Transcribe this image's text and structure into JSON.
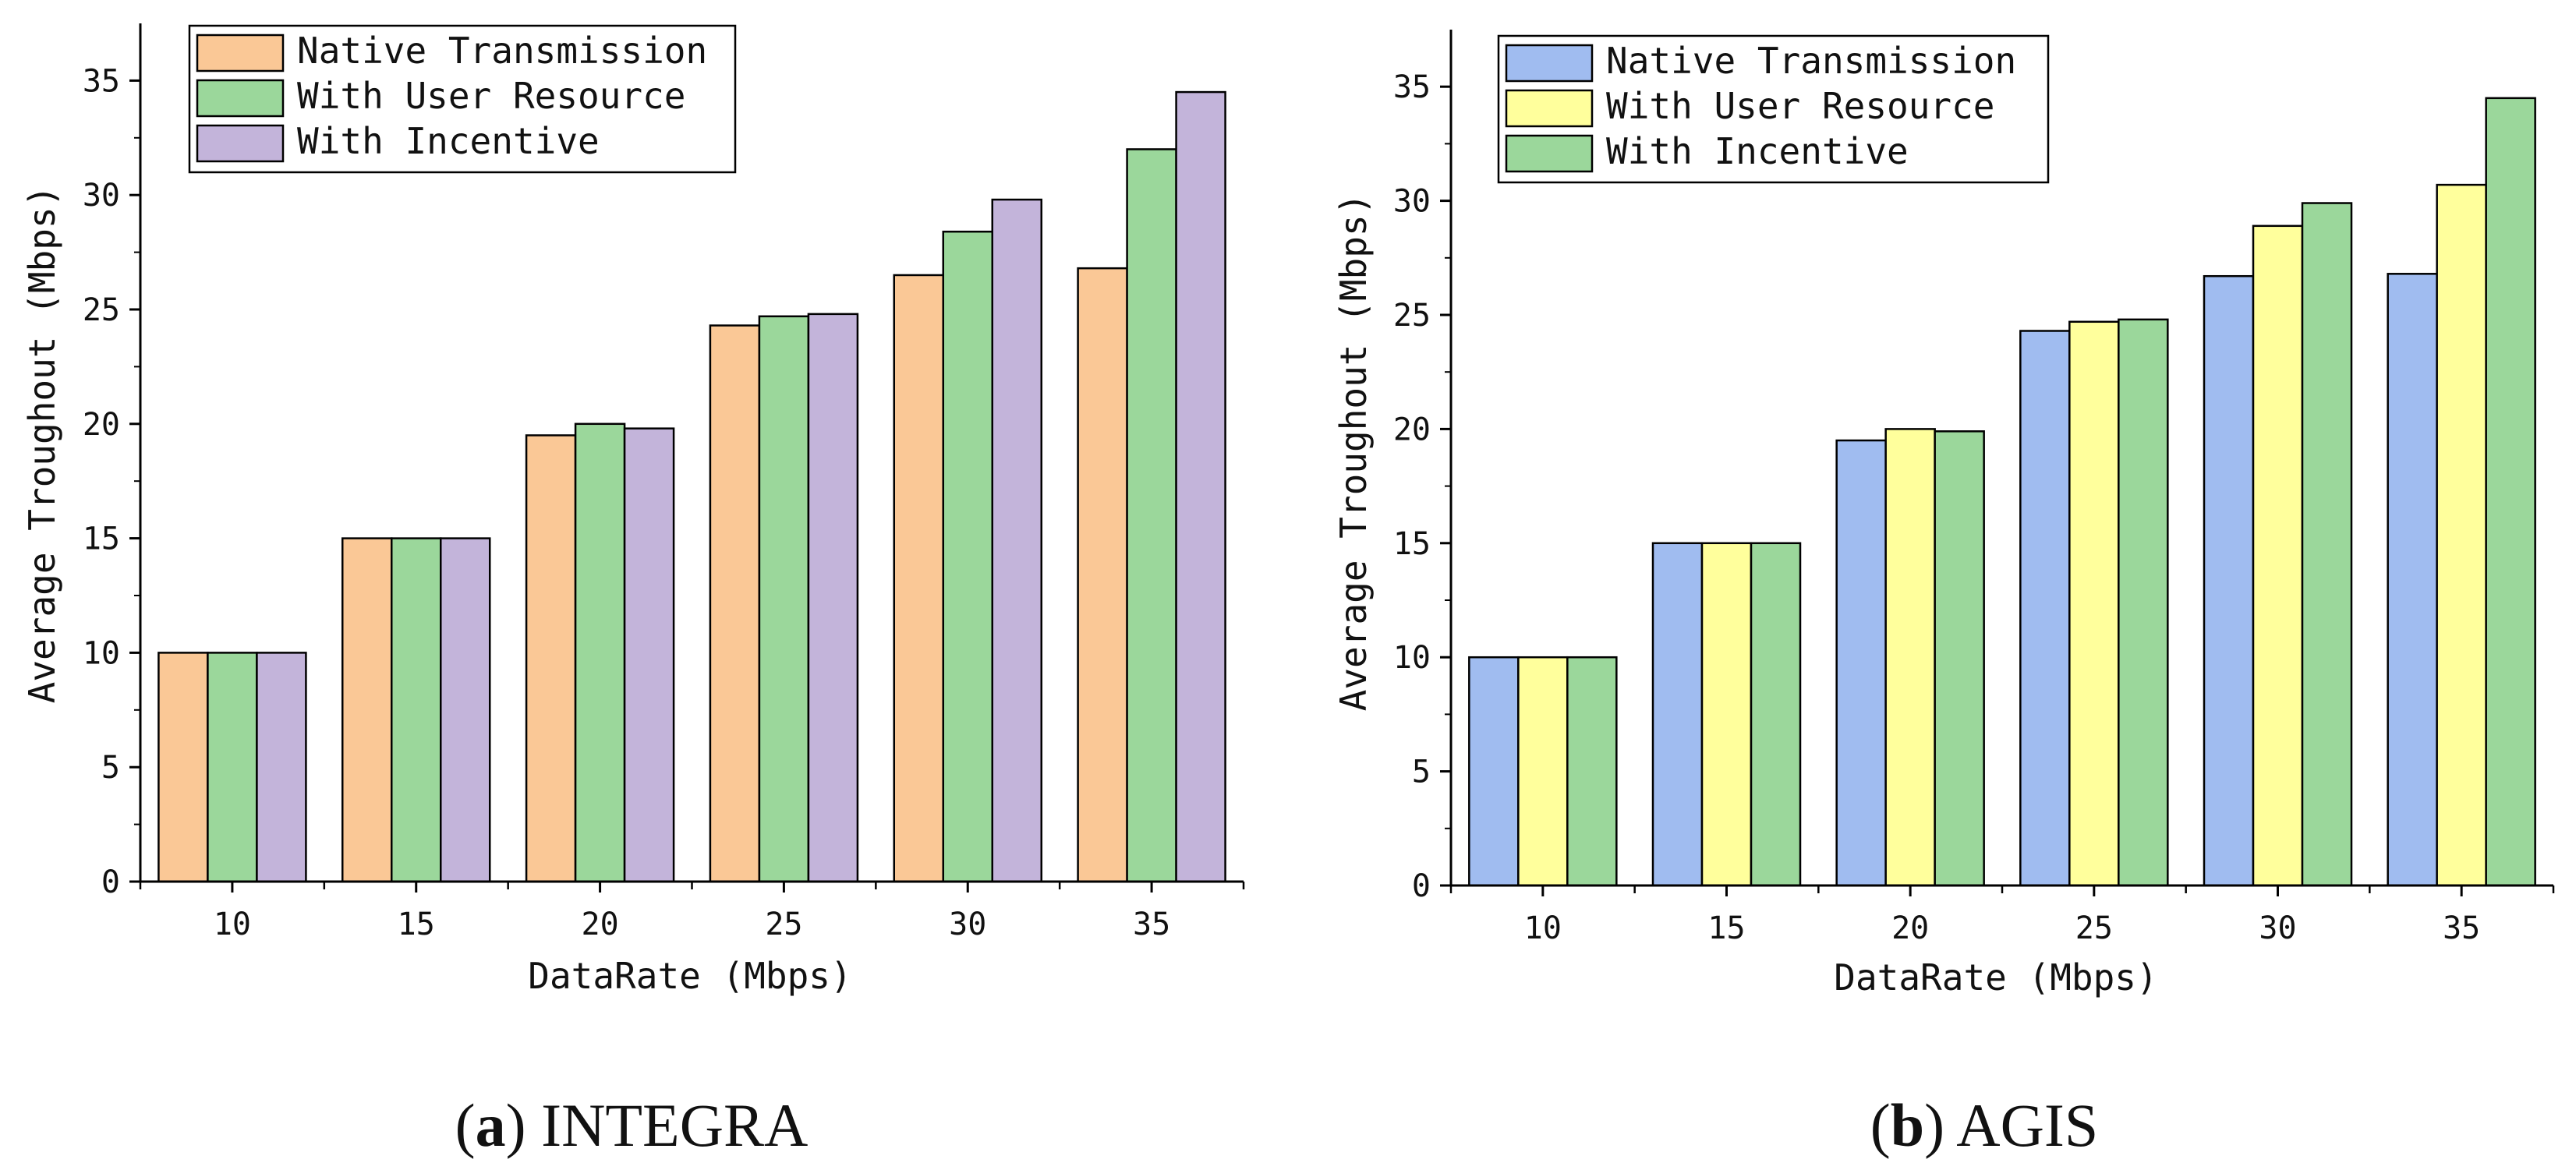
{
  "chart_data": [
    {
      "type": "bar",
      "caption_letter": "a",
      "caption_name": "INTEGRA",
      "xlabel": "DataRate (Mbps)",
      "ylabel": "Average Troughout (Mbps)",
      "ylim": [
        0,
        37.5
      ],
      "yticks": [
        "0",
        "5",
        "10",
        "15",
        "20",
        "25",
        "30",
        "35"
      ],
      "categories": [
        "10",
        "15",
        "20",
        "25",
        "30",
        "35"
      ],
      "legend_position": "top-left",
      "series": [
        {
          "name": "Native Transmission",
          "color": "#FAC896",
          "values": [
            10,
            15,
            19.5,
            24.3,
            26.5,
            26.8
          ]
        },
        {
          "name": "With User Resource",
          "color": "#9BD79B",
          "values": [
            10,
            15,
            20,
            24.7,
            28.4,
            32
          ]
        },
        {
          "name": "With Incentive",
          "color": "#C3B4DA",
          "values": [
            10,
            15,
            19.8,
            24.8,
            29.8,
            34.5
          ]
        }
      ]
    },
    {
      "type": "bar",
      "caption_letter": "b",
      "caption_name": "AGIS",
      "xlabel": "DataRate (Mbps)",
      "ylabel": "Average Troughout (Mbps)",
      "ylim": [
        0,
        37.5
      ],
      "yticks": [
        "0",
        "5",
        "10",
        "15",
        "20",
        "25",
        "30",
        "35"
      ],
      "categories": [
        "10",
        "15",
        "20",
        "25",
        "30",
        "35"
      ],
      "legend_position": "top-left",
      "series": [
        {
          "name": "Native Transmission",
          "color": "#A0BCF0",
          "values": [
            10,
            15,
            19.5,
            24.3,
            26.7,
            26.8
          ]
        },
        {
          "name": "With User Resource",
          "color": "#FFFF9C",
          "values": [
            10,
            15,
            20,
            24.7,
            28.9,
            30.7
          ]
        },
        {
          "name": "With Incentive",
          "color": "#9BD79B",
          "values": [
            10,
            15,
            19.9,
            24.8,
            29.9,
            34.5
          ]
        }
      ]
    }
  ]
}
